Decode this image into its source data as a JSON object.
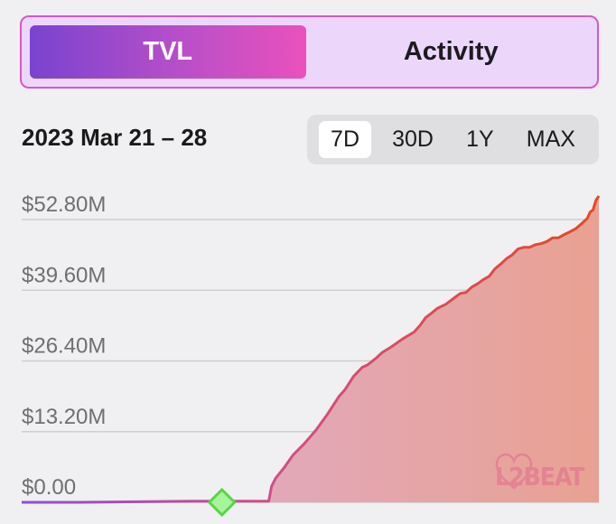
{
  "tabs": [
    {
      "label": "TVL",
      "active": true
    },
    {
      "label": "Activity",
      "active": false
    }
  ],
  "date_range": "2023 Mar 21 – 28",
  "ranges": [
    {
      "label": "7D",
      "active": true
    },
    {
      "label": "30D",
      "active": false
    },
    {
      "label": "1Y",
      "active": false
    },
    {
      "label": "MAX",
      "active": false
    }
  ],
  "watermark": {
    "text": "L2BEAT"
  },
  "colors": {
    "line_start": "#8e4fcf",
    "line_mid": "#d14f86",
    "line_end": "#e54826",
    "area_start": "#dcaed7",
    "area_end": "#e9a192",
    "marker_fill": "#a6f59a",
    "marker_stroke": "#5bd34a",
    "grid": "#cfcfcf"
  },
  "chart_data": {
    "type": "area",
    "title": "",
    "xlabel": "",
    "ylabel": "",
    "y_unit": "USD",
    "ylim": [
      0,
      52.8
    ],
    "yticks": [
      0,
      13.2,
      26.4,
      39.6,
      52.8
    ],
    "ytick_labels": [
      "$0.00",
      "$13.20M",
      "$26.40M",
      "$39.60M",
      "$52.80M"
    ],
    "marker": {
      "x": 0.347,
      "label": ""
    },
    "series": [
      {
        "name": "TVL",
        "x": [
          0,
          0.05,
          0.1,
          0.2,
          0.3,
          0.37,
          0.42,
          0.428,
          0.433,
          0.44,
          0.455,
          0.47,
          0.49,
          0.51,
          0.53,
          0.55,
          0.56,
          0.575,
          0.59,
          0.6,
          0.615,
          0.625,
          0.64,
          0.66,
          0.68,
          0.69,
          0.7,
          0.71,
          0.72,
          0.735,
          0.75,
          0.76,
          0.77,
          0.78,
          0.79,
          0.8,
          0.81,
          0.82,
          0.83,
          0.84,
          0.85,
          0.86,
          0.87,
          0.88,
          0.89,
          0.9,
          0.91,
          0.92,
          0.93,
          0.94,
          0.95,
          0.96,
          0.97,
          0.98,
          0.985,
          0.99,
          0.995,
          1.0
        ],
        "values": [
          0,
          0,
          0,
          0.1,
          0.2,
          0.2,
          0.2,
          0.2,
          3.0,
          4.5,
          6.5,
          8.8,
          11.0,
          13.5,
          16.5,
          19.8,
          21.0,
          23.5,
          25.2,
          25.7,
          27.0,
          28.0,
          29.0,
          30.5,
          31.8,
          33.0,
          34.5,
          35.3,
          36.2,
          37.0,
          38.2,
          39.0,
          39.2,
          40.2,
          40.8,
          41.6,
          42.2,
          43.6,
          44.5,
          45.5,
          46.2,
          47.3,
          47.6,
          47.6,
          48.1,
          48.3,
          48.7,
          49.4,
          49.4,
          50.0,
          50.5,
          51.1,
          52.0,
          53.0,
          54.2,
          54.6,
          56.4,
          57.2
        ]
      }
    ]
  }
}
